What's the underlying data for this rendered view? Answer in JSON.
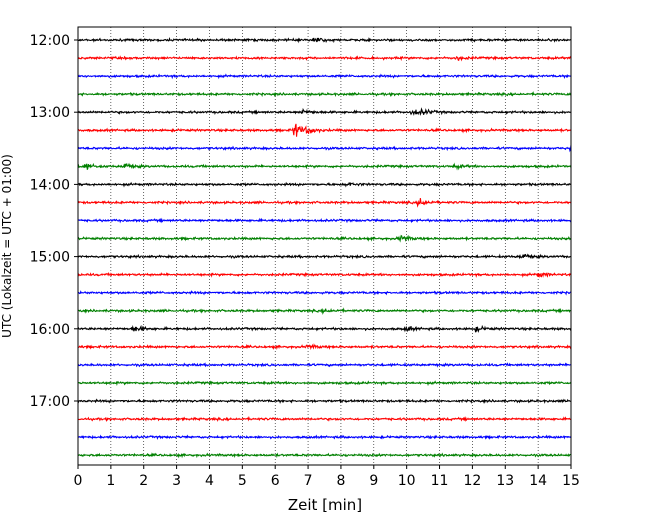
{
  "chart_data": {
    "type": "line",
    "title": "",
    "xlabel": "Zeit  [min]",
    "ylabel": "UTC (Lokalzeit = UTC + 01:00)",
    "xlim": [
      0,
      15
    ],
    "x_ticks": [
      0,
      1,
      2,
      3,
      4,
      5,
      6,
      7,
      8,
      9,
      10,
      11,
      12,
      13,
      14,
      15
    ],
    "x_tick_labels": [
      "0",
      "1",
      "2",
      "3",
      "4",
      "5",
      "6",
      "7",
      "8",
      "9",
      "10",
      "11",
      "12",
      "13",
      "14",
      "15"
    ],
    "y_tick_labels": [
      "12:00",
      "13:00",
      "14:00",
      "15:00",
      "16:00",
      "17:00"
    ],
    "y_tick_rows": [
      0,
      4,
      8,
      12,
      16,
      20
    ],
    "vertical_grid": "dotted at each minute",
    "row_interval_minutes": 15,
    "color_cycle": [
      "#000000",
      "#ff0000",
      "#0000ff",
      "#008000"
    ],
    "series": [
      {
        "start": "12:00",
        "events": [
          [
            7.2,
            1.0
          ]
        ]
      },
      {
        "start": "12:15",
        "events": [
          [
            11.5,
            0.7
          ]
        ]
      },
      {
        "start": "12:30",
        "events": []
      },
      {
        "start": "12:45",
        "events": []
      },
      {
        "start": "13:00",
        "events": [
          [
            6.8,
            0.9
          ],
          [
            10.2,
            0.9
          ],
          [
            10.5,
            0.7
          ]
        ]
      },
      {
        "start": "13:15",
        "events": [
          [
            6.6,
            2.6
          ],
          [
            7.0,
            1.2
          ]
        ]
      },
      {
        "start": "13:30",
        "events": [
          [
            15.0,
            1.5
          ]
        ]
      },
      {
        "start": "13:45",
        "events": [
          [
            0.2,
            1.1
          ],
          [
            1.4,
            1.1
          ],
          [
            11.5,
            0.6
          ]
        ]
      },
      {
        "start": "14:00",
        "events": [
          [
            8.2,
            0.6
          ]
        ]
      },
      {
        "start": "14:15",
        "events": [
          [
            10.4,
            1.6
          ]
        ]
      },
      {
        "start": "14:30",
        "events": []
      },
      {
        "start": "14:45",
        "events": [
          [
            9.8,
            1.0
          ]
        ]
      },
      {
        "start": "15:00",
        "events": [
          [
            13.5,
            1.0
          ]
        ]
      },
      {
        "start": "15:15",
        "events": [
          [
            14.0,
            0.9
          ]
        ]
      },
      {
        "start": "15:30",
        "events": []
      },
      {
        "start": "15:45",
        "events": [
          [
            7.5,
            0.6
          ]
        ]
      },
      {
        "start": "16:00",
        "events": [
          [
            1.7,
            1.1
          ],
          [
            10.0,
            0.7
          ],
          [
            12.1,
            0.8
          ]
        ]
      },
      {
        "start": "16:15",
        "events": [
          [
            7.0,
            0.6
          ]
        ]
      },
      {
        "start": "16:30",
        "events": []
      },
      {
        "start": "16:45",
        "events": []
      },
      {
        "start": "17:00",
        "events": []
      },
      {
        "start": "17:15",
        "events": []
      },
      {
        "start": "17:30",
        "events": []
      },
      {
        "start": "17:45",
        "events": []
      }
    ]
  }
}
